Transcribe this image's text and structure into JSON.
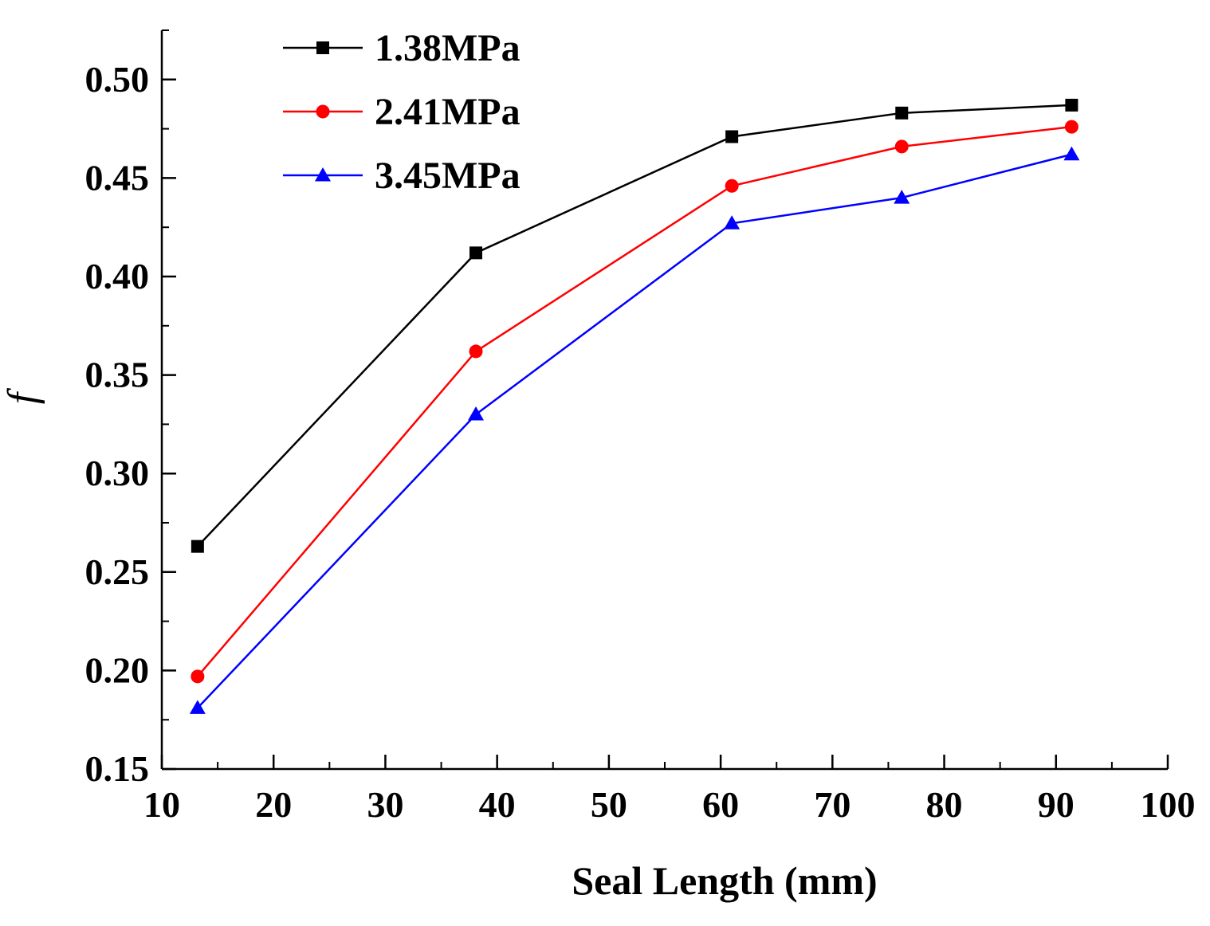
{
  "chart_data": {
    "type": "line",
    "title": "",
    "xlabel": "Seal Length (mm)",
    "ylabel": "f",
    "xlim": [
      10,
      100
    ],
    "ylim": [
      0.15,
      0.525
    ],
    "xticks": [
      10,
      20,
      30,
      40,
      50,
      60,
      70,
      80,
      90,
      100
    ],
    "xtick_labels": [
      "10",
      "20",
      "30",
      "40",
      "50",
      "60",
      "70",
      "80",
      "90",
      "100"
    ],
    "yticks": [
      0.15,
      0.2,
      0.25,
      0.3,
      0.35,
      0.4,
      0.45,
      0.5
    ],
    "ytick_labels": [
      "0.15",
      "0.20",
      "0.25",
      "0.30",
      "0.35",
      "0.40",
      "0.45",
      "0.50"
    ],
    "grid": false,
    "legend_position": "top-left",
    "x": [
      13.2,
      38.1,
      61.0,
      76.2,
      91.4
    ],
    "series": [
      {
        "name": "1.38MPa",
        "color": "#000000",
        "marker": "square",
        "values": [
          0.263,
          0.412,
          0.471,
          0.483,
          0.487
        ]
      },
      {
        "name": "2.41MPa",
        "color": "#ff0000",
        "marker": "circle",
        "values": [
          0.197,
          0.362,
          0.446,
          0.466,
          0.476
        ]
      },
      {
        "name": "3.45MPa",
        "color": "#0000ff",
        "marker": "triangle",
        "values": [
          0.181,
          0.33,
          0.427,
          0.44,
          0.462
        ]
      }
    ]
  }
}
